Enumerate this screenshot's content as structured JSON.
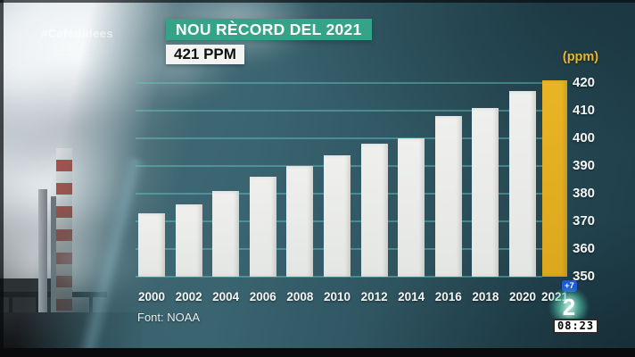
{
  "broadcast": {
    "hashtag": "#Cafèdidees",
    "headline": "NOU RÈCORD DEL 2021",
    "headline_value": "421 PPM",
    "source": "Font: NOAA",
    "channel": {
      "logo": "2",
      "timeshift_badge": "+7",
      "clock": "08:23"
    }
  },
  "chart_data": {
    "type": "bar",
    "title": "NOU RÈCORD DEL 2021",
    "subtitle": "421 PPM",
    "unit_label": "(ppm)",
    "categories": [
      "2000",
      "2002",
      "2004",
      "2006",
      "2008",
      "2010",
      "2012",
      "2014",
      "2016",
      "2018",
      "2020",
      "2021"
    ],
    "values": [
      373,
      376,
      381,
      386,
      390,
      394,
      398,
      400,
      408,
      411,
      417,
      421
    ],
    "ylim": [
      350,
      424
    ],
    "yticks": [
      420,
      410,
      400,
      390,
      380,
      370,
      360,
      350
    ],
    "grid": true,
    "legend_position": "none",
    "highlight_category": "2021",
    "source": "Font: NOAA",
    "colors": {
      "bar": "#e4e6e3",
      "highlight": "#dca71d",
      "gridline": "rgba(105,200,194,0.45)",
      "axis_text": "#f3f6f5",
      "unit_text": "#e9b52c",
      "banner_bg": "#35a387",
      "banner_text": "#ffffff",
      "value_bg": "#f3f3f1",
      "value_text": "#101010",
      "badge_bg": "#1d5ad6"
    }
  }
}
